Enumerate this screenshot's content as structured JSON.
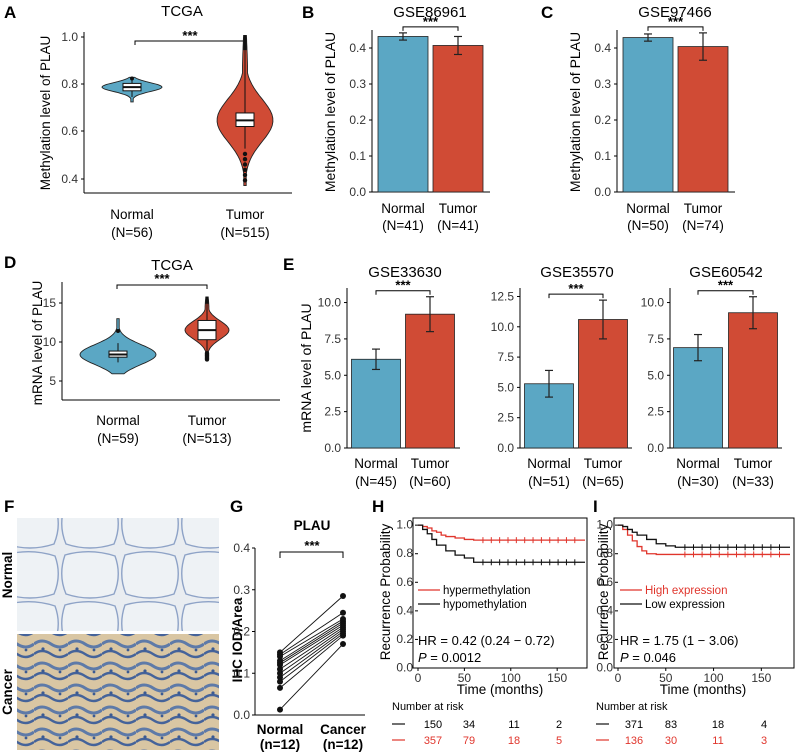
{
  "colors": {
    "normal": "#5ba7c4",
    "tumor": "#d04b35",
    "hyper": "#e0352c",
    "hypo": "#111111"
  },
  "panels": {
    "A": {
      "label": "A",
      "title": "TCGA",
      "ylabel": "Methylation level of PLAU",
      "sig": "***",
      "yticks": [
        "0.4",
        "0.6",
        "0.8",
        "1.0"
      ],
      "groups": [
        {
          "name": "Normal",
          "n": "(N=56)"
        },
        {
          "name": "Tumor",
          "n": "(N=515)"
        }
      ]
    },
    "B": {
      "label": "B",
      "title": "GSE86961",
      "ylabel": "Methylation level of PLAU",
      "sig": "***",
      "yticks": [
        "0.0",
        "0.1",
        "0.2",
        "0.3",
        "0.4"
      ],
      "groups": [
        {
          "name": "Normal",
          "n": "(N=41)"
        },
        {
          "name": "Tumor",
          "n": "(N=41)"
        }
      ]
    },
    "C": {
      "label": "C",
      "title": "GSE97466",
      "ylabel": "Methylation level of PLAU",
      "sig": "***",
      "yticks": [
        "0.0",
        "0.1",
        "0.2",
        "0.3",
        "0.4"
      ],
      "groups": [
        {
          "name": "Normal",
          "n": "(N=50)"
        },
        {
          "name": "Tumor",
          "n": "(N=74)"
        }
      ]
    },
    "D": {
      "label": "D",
      "title": "TCGA",
      "ylabel": "mRNA level of PLAU",
      "sig": "***",
      "yticks": [
        "5",
        "10",
        "15"
      ],
      "groups": [
        {
          "name": "Normal",
          "n": "(N=59)"
        },
        {
          "name": "Tumor",
          "n": "(N=513)"
        }
      ]
    },
    "E": {
      "label": "E",
      "ylabel": "mRNA level of PLAU",
      "sub": [
        {
          "title": "GSE33630",
          "sig": "***",
          "yticks": [
            "0.0",
            "2.5",
            "5.0",
            "7.5",
            "10.0"
          ],
          "groups": [
            {
              "name": "Normal",
              "n": "(N=45)"
            },
            {
              "name": "Tumor",
              "n": "(N=60)"
            }
          ]
        },
        {
          "title": "GSE35570",
          "sig": "***",
          "yticks": [
            "0.0",
            "2.5",
            "5.0",
            "7.5",
            "10.0",
            "12.5"
          ],
          "groups": [
            {
              "name": "Normal",
              "n": "(N=51)"
            },
            {
              "name": "Tumor",
              "n": "(N=65)"
            }
          ]
        },
        {
          "title": "GSE60542",
          "sig": "***",
          "yticks": [
            "0.0",
            "2.5",
            "5.0",
            "7.5",
            "10.0"
          ],
          "groups": [
            {
              "name": "Normal",
              "n": "(N=30)"
            },
            {
              "name": "Tumor",
              "n": "(N=33)"
            }
          ]
        }
      ]
    },
    "F": {
      "label": "F",
      "rows": [
        "Normal",
        "Cancer"
      ]
    },
    "G": {
      "label": "G",
      "title": "PLAU",
      "sig": "***",
      "ylabel": "IHC IOD/Area",
      "yticks": [
        "0.0",
        "0.1",
        "0.2",
        "0.3",
        "0.4"
      ],
      "groups": [
        {
          "name": "Normal",
          "n": "(n=12)"
        },
        {
          "name": "Cancer",
          "n": "(n=12)"
        }
      ]
    },
    "H": {
      "label": "H",
      "ylabel": "Recurrence Probability",
      "xlabel": "Time (months)",
      "yticks": [
        "0.0",
        "0.2",
        "0.4",
        "0.6",
        "0.8",
        "1.0"
      ],
      "xticks": [
        "0",
        "50",
        "100",
        "150"
      ],
      "legend": [
        "hypermethylation",
        "hypomethylation"
      ],
      "hr": "HR = 0.42 (0.24 − 0.72)",
      "p_label": "P",
      "p_value": " = 0.0012",
      "risk_title": "Number at risk",
      "risk": [
        [
          "150",
          "34",
          "11",
          "2"
        ],
        [
          "357",
          "79",
          "18",
          "5"
        ]
      ]
    },
    "I": {
      "label": "I",
      "ylabel": "Recurrence Probability",
      "xlabel": "Time (months)",
      "yticks": [
        "0.0",
        "0.2",
        "0.4",
        "0.6",
        "0.8",
        "1.0"
      ],
      "xticks": [
        "0",
        "50",
        "100",
        "150"
      ],
      "legend": [
        "High expression",
        "Low expression"
      ],
      "hr": "HR = 1.75 (1 − 3.06)",
      "p_label": "P",
      "p_value": " = 0.046",
      "risk_title": "Number at risk",
      "risk": [
        [
          "371",
          "83",
          "18",
          "4"
        ],
        [
          "136",
          "30",
          "11",
          "3"
        ]
      ]
    }
  },
  "chart_data": [
    {
      "type": "violin",
      "panel": "A",
      "title": "TCGA",
      "ylabel": "Methylation level of PLAU",
      "ylim": [
        0.35,
        1.02
      ],
      "categories": [
        "Normal",
        "Tumor"
      ],
      "medians": [
        0.78,
        0.645
      ],
      "q1": [
        0.765,
        0.62
      ],
      "q3": [
        0.795,
        0.675
      ],
      "whisker_low": [
        0.74,
        0.53
      ],
      "whisker_high": [
        0.81,
        0.93
      ],
      "max": [
        0.82,
        0.99
      ],
      "min": [
        0.72,
        0.38
      ]
    },
    {
      "type": "bar",
      "panel": "B",
      "title": "GSE86961",
      "categories": [
        "Normal",
        "Tumor"
      ],
      "values": [
        0.432,
        0.407
      ],
      "errors": [
        0.01,
        0.025
      ],
      "ylim": [
        0,
        0.45
      ]
    },
    {
      "type": "bar",
      "panel": "C",
      "title": "GSE97466",
      "categories": [
        "Normal",
        "Tumor"
      ],
      "values": [
        0.429,
        0.404
      ],
      "errors": [
        0.01,
        0.038
      ],
      "ylim": [
        0,
        0.45
      ]
    },
    {
      "type": "violin",
      "panel": "D",
      "title": "TCGA",
      "ylabel": "mRNA level of PLAU",
      "ylim": [
        3,
        16.5
      ],
      "categories": [
        "Normal",
        "Tumor"
      ],
      "medians": [
        8.2,
        11.0
      ],
      "q1": [
        7.9,
        9.9
      ],
      "q3": [
        8.6,
        12.1
      ],
      "whisker_low": [
        7.3,
        8.5
      ],
      "whisker_high": [
        9.5,
        14.0
      ],
      "max": [
        12.3,
        14.8
      ],
      "min": [
        6.0,
        7.5
      ]
    },
    {
      "type": "bar",
      "panel": "E",
      "title": "GSE33630",
      "categories": [
        "Normal",
        "Tumor"
      ],
      "values": [
        6.1,
        9.2
      ],
      "errors": [
        0.7,
        1.2
      ],
      "ylim": [
        0,
        11
      ]
    },
    {
      "type": "bar",
      "panel": "E",
      "title": "GSE35570",
      "categories": [
        "Normal",
        "Tumor"
      ],
      "values": [
        5.3,
        10.6
      ],
      "errors": [
        1.1,
        1.6
      ],
      "ylim": [
        0,
        13.2
      ]
    },
    {
      "type": "bar",
      "panel": "E",
      "title": "GSE60542",
      "categories": [
        "Normal",
        "Tumor"
      ],
      "values": [
        6.9,
        9.3
      ],
      "errors": [
        0.9,
        1.1
      ],
      "ylim": [
        0,
        11
      ]
    },
    {
      "type": "paired",
      "panel": "G",
      "title": "PLAU",
      "ylabel": "IHC IOD/Area",
      "ylim": [
        0,
        0.4
      ],
      "categories": [
        "Normal",
        "Cancer"
      ],
      "normal": [
        0.013,
        0.065,
        0.08,
        0.09,
        0.1,
        0.11,
        0.12,
        0.125,
        0.13,
        0.14,
        0.145,
        0.15
      ],
      "cancer": [
        0.17,
        0.19,
        0.195,
        0.2,
        0.205,
        0.21,
        0.215,
        0.22,
        0.225,
        0.23,
        0.245,
        0.285
      ]
    },
    {
      "type": "km",
      "panel": "H",
      "xlim": [
        0,
        180
      ],
      "ylim": [
        0,
        1.05
      ],
      "series": [
        {
          "name": "hypermethylation",
          "color": "#e0352c",
          "points": [
            [
              0,
              1
            ],
            [
              5,
              0.99
            ],
            [
              10,
              0.98
            ],
            [
              15,
              0.96
            ],
            [
              20,
              0.95
            ],
            [
              25,
              0.93
            ],
            [
              30,
              0.92
            ],
            [
              40,
              0.91
            ],
            [
              50,
              0.9
            ],
            [
              60,
              0.895
            ],
            [
              180,
              0.895
            ]
          ]
        },
        {
          "name": "hypomethylation",
          "color": "#111111",
          "points": [
            [
              0,
              1
            ],
            [
              5,
              0.97
            ],
            [
              10,
              0.94
            ],
            [
              15,
              0.9
            ],
            [
              20,
              0.86
            ],
            [
              30,
              0.82
            ],
            [
              40,
              0.79
            ],
            [
              50,
              0.77
            ],
            [
              60,
              0.74
            ],
            [
              180,
              0.74
            ]
          ]
        }
      ]
    },
    {
      "type": "km",
      "panel": "I",
      "xlim": [
        0,
        180
      ],
      "ylim": [
        0,
        1.05
      ],
      "series": [
        {
          "name": "High expression",
          "color": "#e0352c",
          "points": [
            [
              0,
              1
            ],
            [
              5,
              0.97
            ],
            [
              10,
              0.93
            ],
            [
              15,
              0.89
            ],
            [
              20,
              0.85
            ],
            [
              25,
              0.82
            ],
            [
              30,
              0.8
            ],
            [
              40,
              0.795
            ],
            [
              180,
              0.795
            ]
          ]
        },
        {
          "name": "Low expression",
          "color": "#111111",
          "points": [
            [
              0,
              1
            ],
            [
              5,
              0.99
            ],
            [
              10,
              0.97
            ],
            [
              15,
              0.95
            ],
            [
              20,
              0.93
            ],
            [
              30,
              0.9
            ],
            [
              40,
              0.87
            ],
            [
              50,
              0.855
            ],
            [
              60,
              0.845
            ],
            [
              180,
              0.845
            ]
          ]
        }
      ]
    }
  ]
}
